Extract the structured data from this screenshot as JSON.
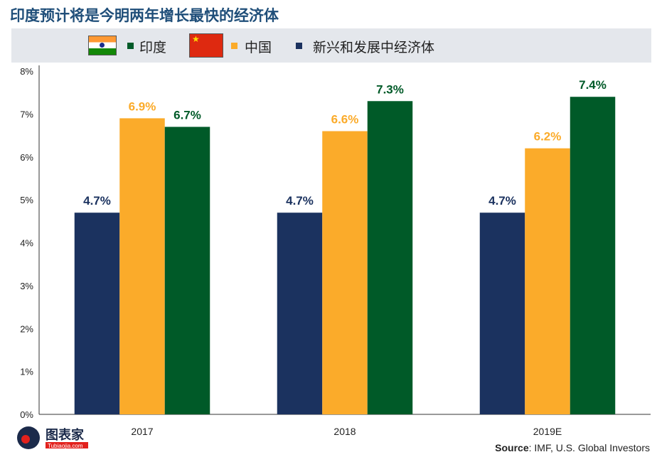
{
  "title": "印度预计将是今明两年增长最快的经济体",
  "legend": [
    {
      "label": "印度",
      "color": "#005a28",
      "icon": "india-flag-icon"
    },
    {
      "label": "中国",
      "color": "#fbab2a",
      "icon": "china-flag-icon"
    },
    {
      "label": "新兴和发展中经济体",
      "color": "#1b325f"
    }
  ],
  "source": {
    "label": "Source",
    "text": ": IMF, U.S. Global Investors"
  },
  "logo": {
    "text": "图表家",
    "sub": "Tubiaojia.com"
  },
  "chart_data": {
    "type": "bar",
    "title": "印度预计将是今明两年增长最快的经济体",
    "categories": [
      "2017",
      "2018",
      "2019E"
    ],
    "series": [
      {
        "name": "新兴和发展中经济体",
        "color": "#1b325f",
        "values": [
          4.7,
          4.7,
          4.7
        ],
        "labels": [
          "4.7%",
          "4.7%",
          "4.7%"
        ]
      },
      {
        "name": "中国",
        "color": "#fbab2a",
        "values": [
          6.9,
          6.6,
          6.2
        ],
        "labels": [
          "6.9%",
          "6.6%",
          "6.2%"
        ]
      },
      {
        "name": "印度",
        "color": "#005a28",
        "values": [
          6.7,
          7.3,
          7.4
        ],
        "labels": [
          "6.7%",
          "7.3%",
          "7.4%"
        ]
      }
    ],
    "yticks": [
      "0%",
      "1%",
      "2%",
      "3%",
      "4%",
      "5%",
      "6%",
      "7%",
      "8%"
    ],
    "ylim": [
      0,
      8
    ],
    "grid": false,
    "legend_position": "top"
  }
}
